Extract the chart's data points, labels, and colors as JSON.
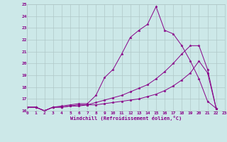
{
  "xlabel": "Windchill (Refroidissement éolien,°C)",
  "background_color": "#cce8e8",
  "grid_color": "#b0c8c8",
  "line_color": "#880088",
  "xmin": 0,
  "xmax": 23,
  "ymin": 16,
  "ymax": 25,
  "series": [
    [
      16.3,
      16.3,
      16.0,
      16.3,
      16.4,
      16.5,
      16.6,
      16.6,
      17.3,
      18.8,
      19.5,
      20.8,
      22.2,
      22.8,
      23.3,
      24.8,
      22.8,
      22.5,
      21.5,
      20.2,
      18.7,
      16.8,
      16.2
    ],
    [
      16.3,
      16.3,
      16.0,
      16.3,
      16.3,
      16.4,
      16.4,
      16.5,
      16.5,
      16.6,
      16.7,
      16.8,
      16.9,
      17.0,
      17.2,
      17.4,
      17.7,
      18.1,
      18.6,
      19.2,
      20.2,
      19.2,
      16.2
    ],
    [
      16.3,
      16.3,
      16.0,
      16.3,
      16.3,
      16.4,
      16.5,
      16.5,
      16.7,
      16.9,
      17.1,
      17.3,
      17.6,
      17.9,
      18.2,
      18.7,
      19.3,
      20.0,
      20.8,
      21.5,
      21.5,
      19.5,
      16.2
    ]
  ]
}
